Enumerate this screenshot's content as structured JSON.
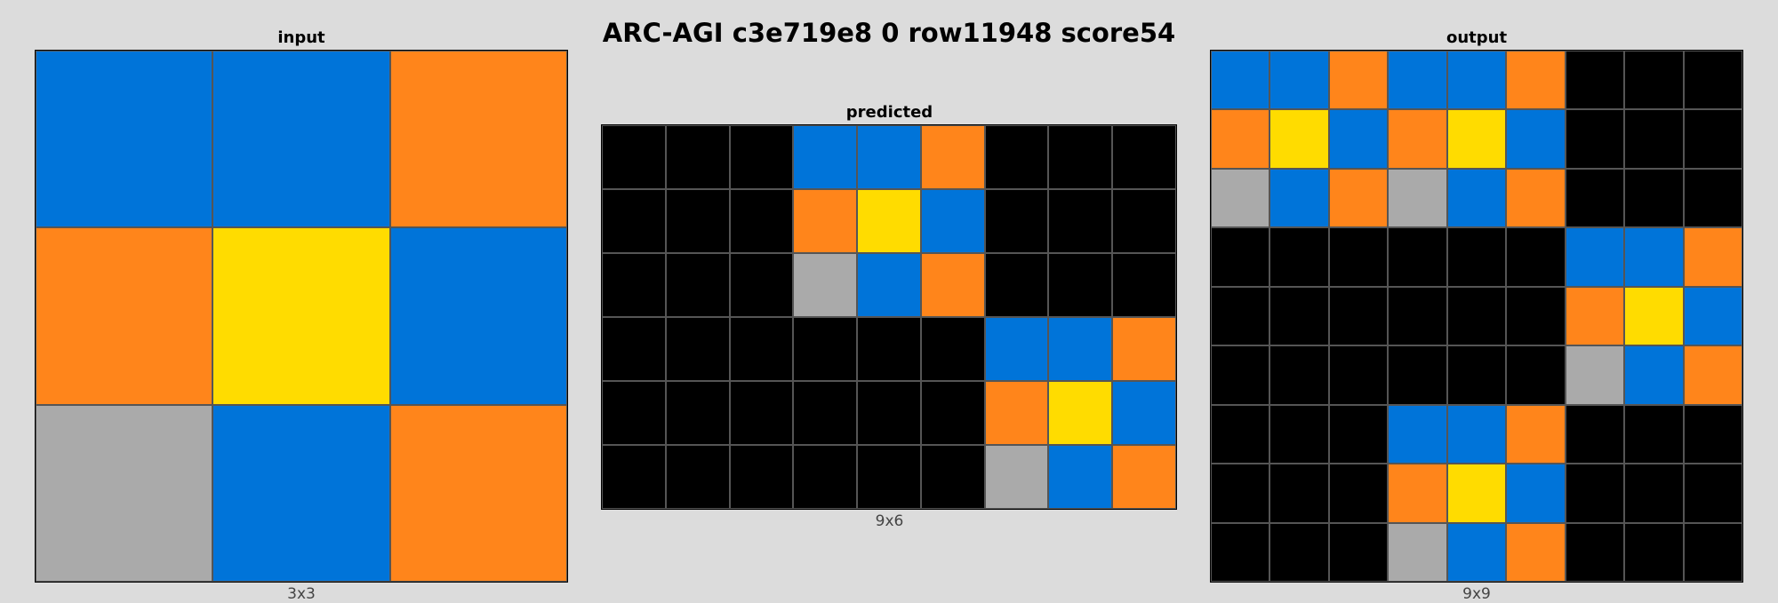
{
  "title": "ARC-AGI c3e719e8 0 row11948 score54",
  "palette": {
    "0": "#000000",
    "1": "#0074D9",
    "4": "#FFDC00",
    "5": "#AAAAAA",
    "7": "#FF851B"
  },
  "panels": [
    {
      "id": "input",
      "label": "input",
      "caption": "3x3",
      "rows": [
        [
          1,
          1,
          7
        ],
        [
          7,
          4,
          1
        ],
        [
          5,
          1,
          7
        ]
      ]
    },
    {
      "id": "predicted",
      "label": "predicted",
      "caption": "9x6",
      "rows": [
        [
          0,
          0,
          0,
          1,
          1,
          7,
          0,
          0,
          0
        ],
        [
          0,
          0,
          0,
          7,
          4,
          1,
          0,
          0,
          0
        ],
        [
          0,
          0,
          0,
          5,
          1,
          7,
          0,
          0,
          0
        ],
        [
          0,
          0,
          0,
          0,
          0,
          0,
          1,
          1,
          7
        ],
        [
          0,
          0,
          0,
          0,
          0,
          0,
          7,
          4,
          1
        ],
        [
          0,
          0,
          0,
          0,
          0,
          0,
          5,
          1,
          7
        ]
      ]
    },
    {
      "id": "output",
      "label": "output",
      "caption": "9x9",
      "rows": [
        [
          1,
          1,
          7,
          1,
          1,
          7,
          0,
          0,
          0
        ],
        [
          7,
          4,
          1,
          7,
          4,
          1,
          0,
          0,
          0
        ],
        [
          5,
          1,
          7,
          5,
          1,
          7,
          0,
          0,
          0
        ],
        [
          0,
          0,
          0,
          0,
          0,
          0,
          1,
          1,
          7
        ],
        [
          0,
          0,
          0,
          0,
          0,
          0,
          7,
          4,
          1
        ],
        [
          0,
          0,
          0,
          0,
          0,
          0,
          5,
          1,
          7
        ],
        [
          0,
          0,
          0,
          1,
          1,
          7,
          0,
          0,
          0
        ],
        [
          0,
          0,
          0,
          7,
          4,
          1,
          0,
          0,
          0
        ],
        [
          0,
          0,
          0,
          5,
          1,
          7,
          0,
          0,
          0
        ]
      ]
    }
  ]
}
